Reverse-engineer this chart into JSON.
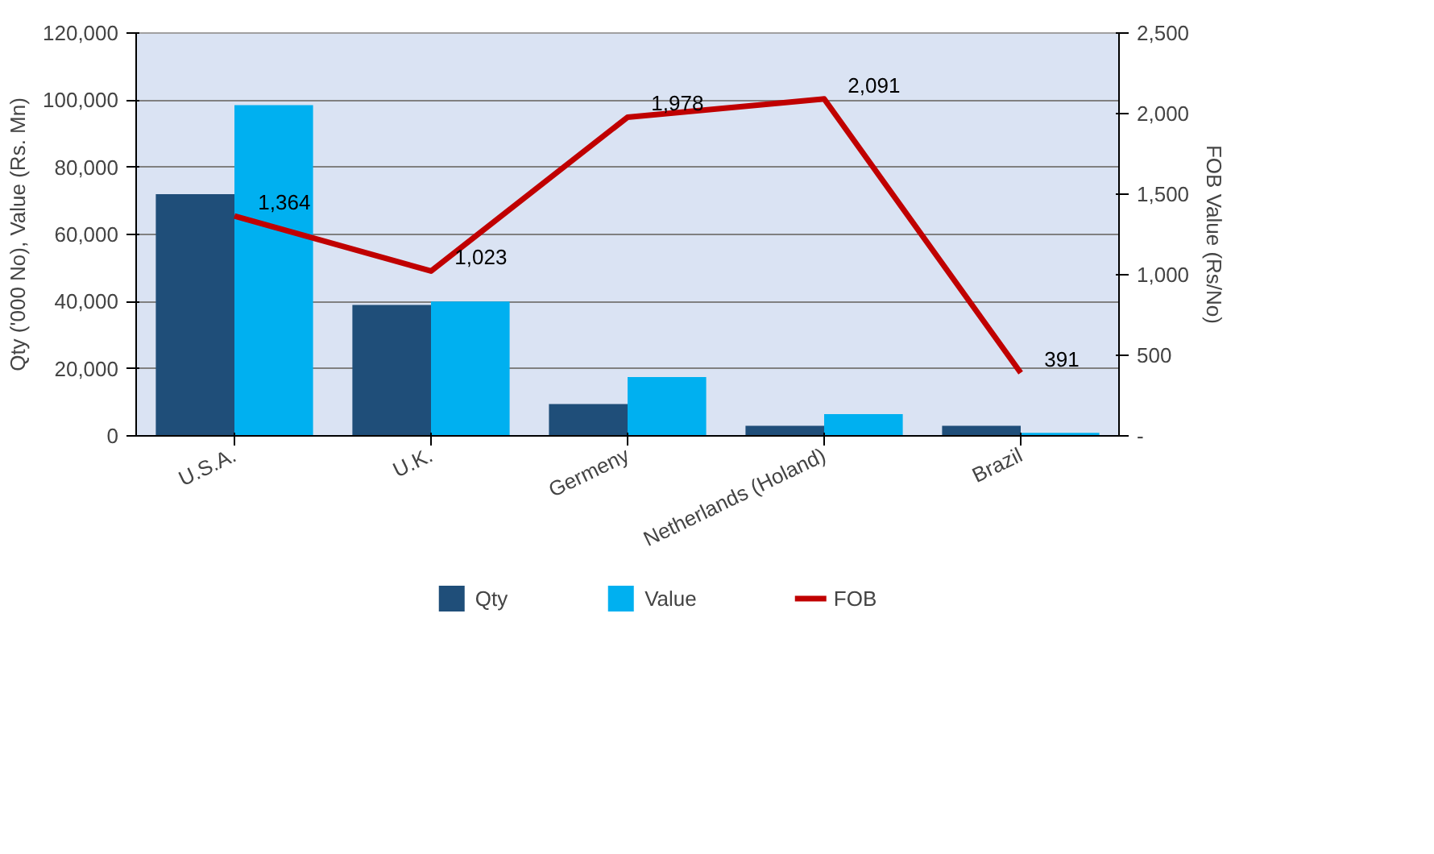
{
  "chart_data": {
    "type": "bar",
    "categories": [
      "U.S.A.",
      "U.K.",
      "Germeny",
      "Netherlands (Holand)",
      "Brazil"
    ],
    "ylabel": "Qty ('000 No), Value (Rs. Mn)",
    "y2label": "FOB Value (Rs/No)",
    "series": [
      {
        "name": "Qty",
        "color": "#1f4e79",
        "values": [
          72000,
          39000,
          9500,
          3000,
          3000
        ]
      },
      {
        "name": "Value",
        "color": "#00b0f0",
        "values": [
          98500,
          40000,
          17500,
          6500,
          900
        ]
      },
      {
        "name": "FOB",
        "type": "line",
        "axis": "y2",
        "color": "#c00000",
        "values": [
          1364,
          1023,
          1978,
          2091,
          391
        ],
        "value_labels": [
          "1,364",
          "1,023",
          "1,978",
          "2,091",
          "391"
        ]
      }
    ],
    "ylim": [
      0,
      120000
    ],
    "yticks": [
      {
        "value": 0,
        "label": "0"
      },
      {
        "value": 20000,
        "label": "20,000"
      },
      {
        "value": 40000,
        "label": "40,000"
      },
      {
        "value": 60000,
        "label": "60,000"
      },
      {
        "value": 80000,
        "label": "80,000"
      },
      {
        "value": 100000,
        "label": "100,000"
      },
      {
        "value": 120000,
        "label": "120,000"
      }
    ],
    "y2lim": [
      0,
      2500
    ],
    "y2ticks": [
      {
        "value": 0,
        "label": "-"
      },
      500,
      {
        "value": 1000,
        "label": "1,000"
      },
      {
        "value": 1500,
        "label": "1,500"
      },
      {
        "value": 2000,
        "label": "2,000"
      },
      {
        "value": 2500,
        "label": "2,500"
      }
    ],
    "grid": "y",
    "legend": "bottom"
  }
}
